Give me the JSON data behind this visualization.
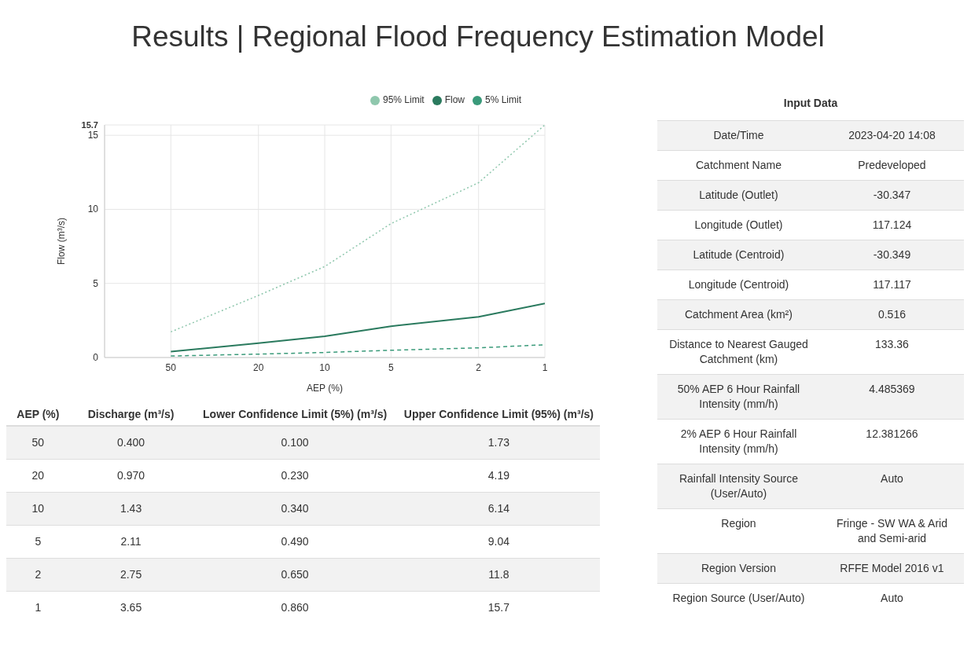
{
  "chart_data": [
    {
      "type": "line",
      "title": "Results | Regional Flood Frequency Estimation Model",
      "xlabel": "AEP (%)",
      "ylabel": "Flow (m³/s)",
      "x": [
        50,
        20,
        10,
        5,
        2,
        1
      ],
      "xlim": [
        100,
        1
      ],
      "xticks": [
        50,
        20,
        10,
        5,
        2,
        1
      ],
      "log": "x",
      "ylim": [
        0,
        15.7
      ],
      "yticks": [
        0,
        5,
        10,
        15,
        15.7
      ],
      "grid": true,
      "legend": "top right",
      "marker": "none",
      "series": [
        {
          "name": "95% Limit",
          "color": "#8fc7ad",
          "line_style": "dotted",
          "values": [
            1.73,
            4.19,
            6.14,
            9.04,
            11.8,
            15.7
          ]
        },
        {
          "name": "Flow",
          "color": "#2a7a5e",
          "line_style": "solid",
          "values": [
            0.4,
            0.97,
            1.43,
            2.11,
            2.75,
            3.65
          ]
        },
        {
          "name": "5% Limit",
          "color": "#3a9a7a",
          "line_style": "dashed",
          "values": [
            0.1,
            0.23,
            0.34,
            0.49,
            0.65,
            0.86
          ]
        }
      ]
    },
    {
      "type": "other",
      "annotations": [
        "AEP (%)",
        "Discharge (m³/s)",
        "Lower Confidence Limit (5%) (m³/s)",
        "Upper Confidence Limit (95%) (m³/s)",
        "50",
        "0.400",
        "0.100",
        "1.73",
        "20",
        "0.970",
        "0.230",
        "4.19",
        "10",
        "1.43",
        "0.340",
        "6.14",
        "5",
        "2.11",
        "0.490",
        "9.04",
        "2",
        "2.75",
        "0.650",
        "11.8",
        "1",
        "3.65",
        "0.860",
        "15.7"
      ]
    },
    {
      "type": "other",
      "title": "Input Data",
      "annotations": [
        "Date/Time",
        "2023-04-20 14:08",
        "Catchment Name",
        "Predeveloped",
        "Latitude (Outlet)",
        "-30.347",
        "Longitude (Outlet)",
        "117.124",
        "Latitude (Centroid)",
        "-30.349",
        "Longitude (Centroid)",
        "117.117",
        "Catchment Area (km²)",
        "0.516",
        "Distance to Nearest Gauged Catchment (km)",
        "133.36",
        "50% AEP 6 Hour Rainfall Intensity (mm/h)",
        "4.485369",
        "2% AEP 6 Hour Rainfall Intensity (mm/h)",
        "12.381266",
        "Rainfall Intensity Source (User/Auto)",
        "Auto",
        "Region",
        "Fringe - SW WA & Arid and Semi-arid",
        "Region Version",
        "RFFE Model 2016 v1",
        "Region Source (User/Auto)",
        "Auto"
      ]
    }
  ]
}
